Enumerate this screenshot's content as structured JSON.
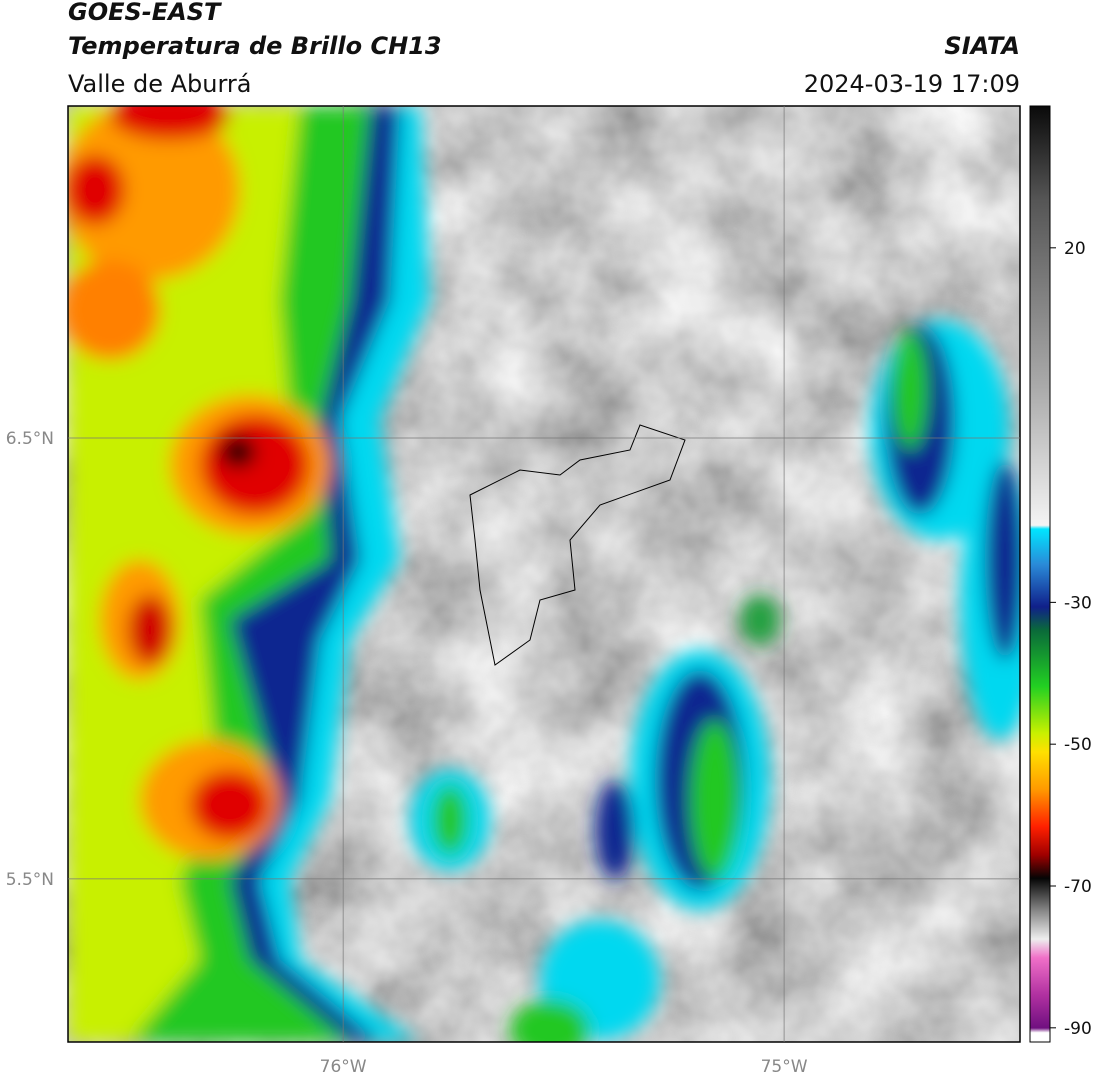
{
  "header": {
    "satellite": "GOES-EAST",
    "product": "Temperatura de Brillo CH13",
    "region": "Valle de Aburrá",
    "source": "SIATA",
    "datetime": "2024-03-19 17:09"
  },
  "map": {
    "xlim": [
      -76.624,
      -74.465
    ],
    "ylim": [
      5.13,
      7.253
    ],
    "xticks": [
      {
        "value": -76,
        "label": "76°W"
      },
      {
        "value": -75,
        "label": "75°W"
      }
    ],
    "yticks": [
      {
        "value": 5.5,
        "label": "5.5°N"
      },
      {
        "value": 6.5,
        "label": "6.5°N"
      }
    ],
    "grid": true
  },
  "colorbar": {
    "lim": [
      -92,
      40
    ],
    "ticks": [
      20,
      -30,
      -50,
      -70,
      -90
    ]
  }
}
